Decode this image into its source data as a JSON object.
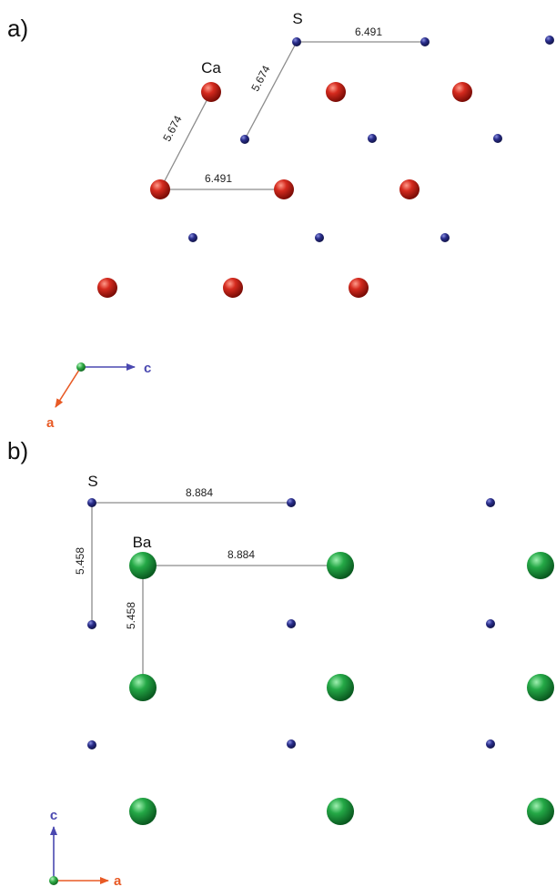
{
  "colors": {
    "S": "#2a2e8c",
    "Ca": "#c9231a",
    "Ba": "#1e9a3e",
    "axis_c": "#4a48b0",
    "axis_a": "#e85a25",
    "axis_origin": "#2faa45",
    "bond": "#8c8c8c"
  },
  "panel_a": {
    "label": "a)",
    "labels": {
      "S": "S",
      "Ca": "Ca"
    },
    "distances": {
      "d1": "6.491",
      "d2": "5.674",
      "d3": "5.674",
      "d4": "6.491"
    },
    "axes": {
      "horizontal": "c",
      "diagonal": "a"
    }
  },
  "panel_b": {
    "label": "b)",
    "labels": {
      "S": "S",
      "Ba": "Ba"
    },
    "distances": {
      "d1": "8.884",
      "d2": "5.458",
      "d3": "8.884",
      "d4": "5.458"
    },
    "axes": {
      "vertical": "c",
      "horizontal": "a"
    }
  }
}
